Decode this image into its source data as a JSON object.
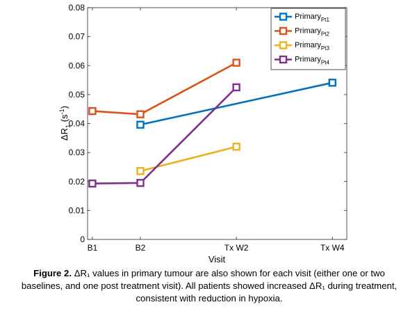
{
  "chart_data": {
    "type": "line",
    "categories": [
      "B1",
      "B2",
      "Tx W2",
      "Tx W4"
    ],
    "x": [
      1,
      2,
      4,
      6
    ],
    "xlabel": "Visit",
    "ylabel": "ΔR",
    "ylabel_sub": "1",
    "ylabel_unit_open": " (s",
    "ylabel_unit_sup": "-1",
    "ylabel_unit_close": ")",
    "ylim": [
      0,
      0.08
    ],
    "yticks": [
      "0",
      "0.01",
      "0.02",
      "0.03",
      "0.04",
      "0.05",
      "0.06",
      "0.07",
      "0.08"
    ],
    "grid": false,
    "legend_position": "top-right",
    "series": [
      {
        "name": "Primary",
        "name_sub": "Pt1",
        "color": "#0072BD",
        "points": [
          {
            "x": 2,
            "y": 0.0396
          },
          {
            "x": 6,
            "y": 0.0541
          }
        ]
      },
      {
        "name": "Primary",
        "name_sub": "Pt2",
        "color": "#D95319",
        "points": [
          {
            "x": 1,
            "y": 0.0443
          },
          {
            "x": 2,
            "y": 0.0432
          },
          {
            "x": 4,
            "y": 0.061
          }
        ]
      },
      {
        "name": "Primary",
        "name_sub": "Pt3",
        "color": "#EDB120",
        "points": [
          {
            "x": 2,
            "y": 0.0236
          },
          {
            "x": 4,
            "y": 0.032
          }
        ]
      },
      {
        "name": "Primary",
        "name_sub": "Pt4",
        "color": "#7E2F8E",
        "points": [
          {
            "x": 1,
            "y": 0.0193
          },
          {
            "x": 2,
            "y": 0.0195
          },
          {
            "x": 4,
            "y": 0.0525
          }
        ]
      }
    ]
  },
  "caption": {
    "label": "Figure 2.",
    "text": " ΔR₁ values in primary tumour are also shown for each visit (either one or two baselines, and one post treatment visit). All patients showed increased ΔR₁ during treatment, consistent with reduction in hypoxia."
  }
}
